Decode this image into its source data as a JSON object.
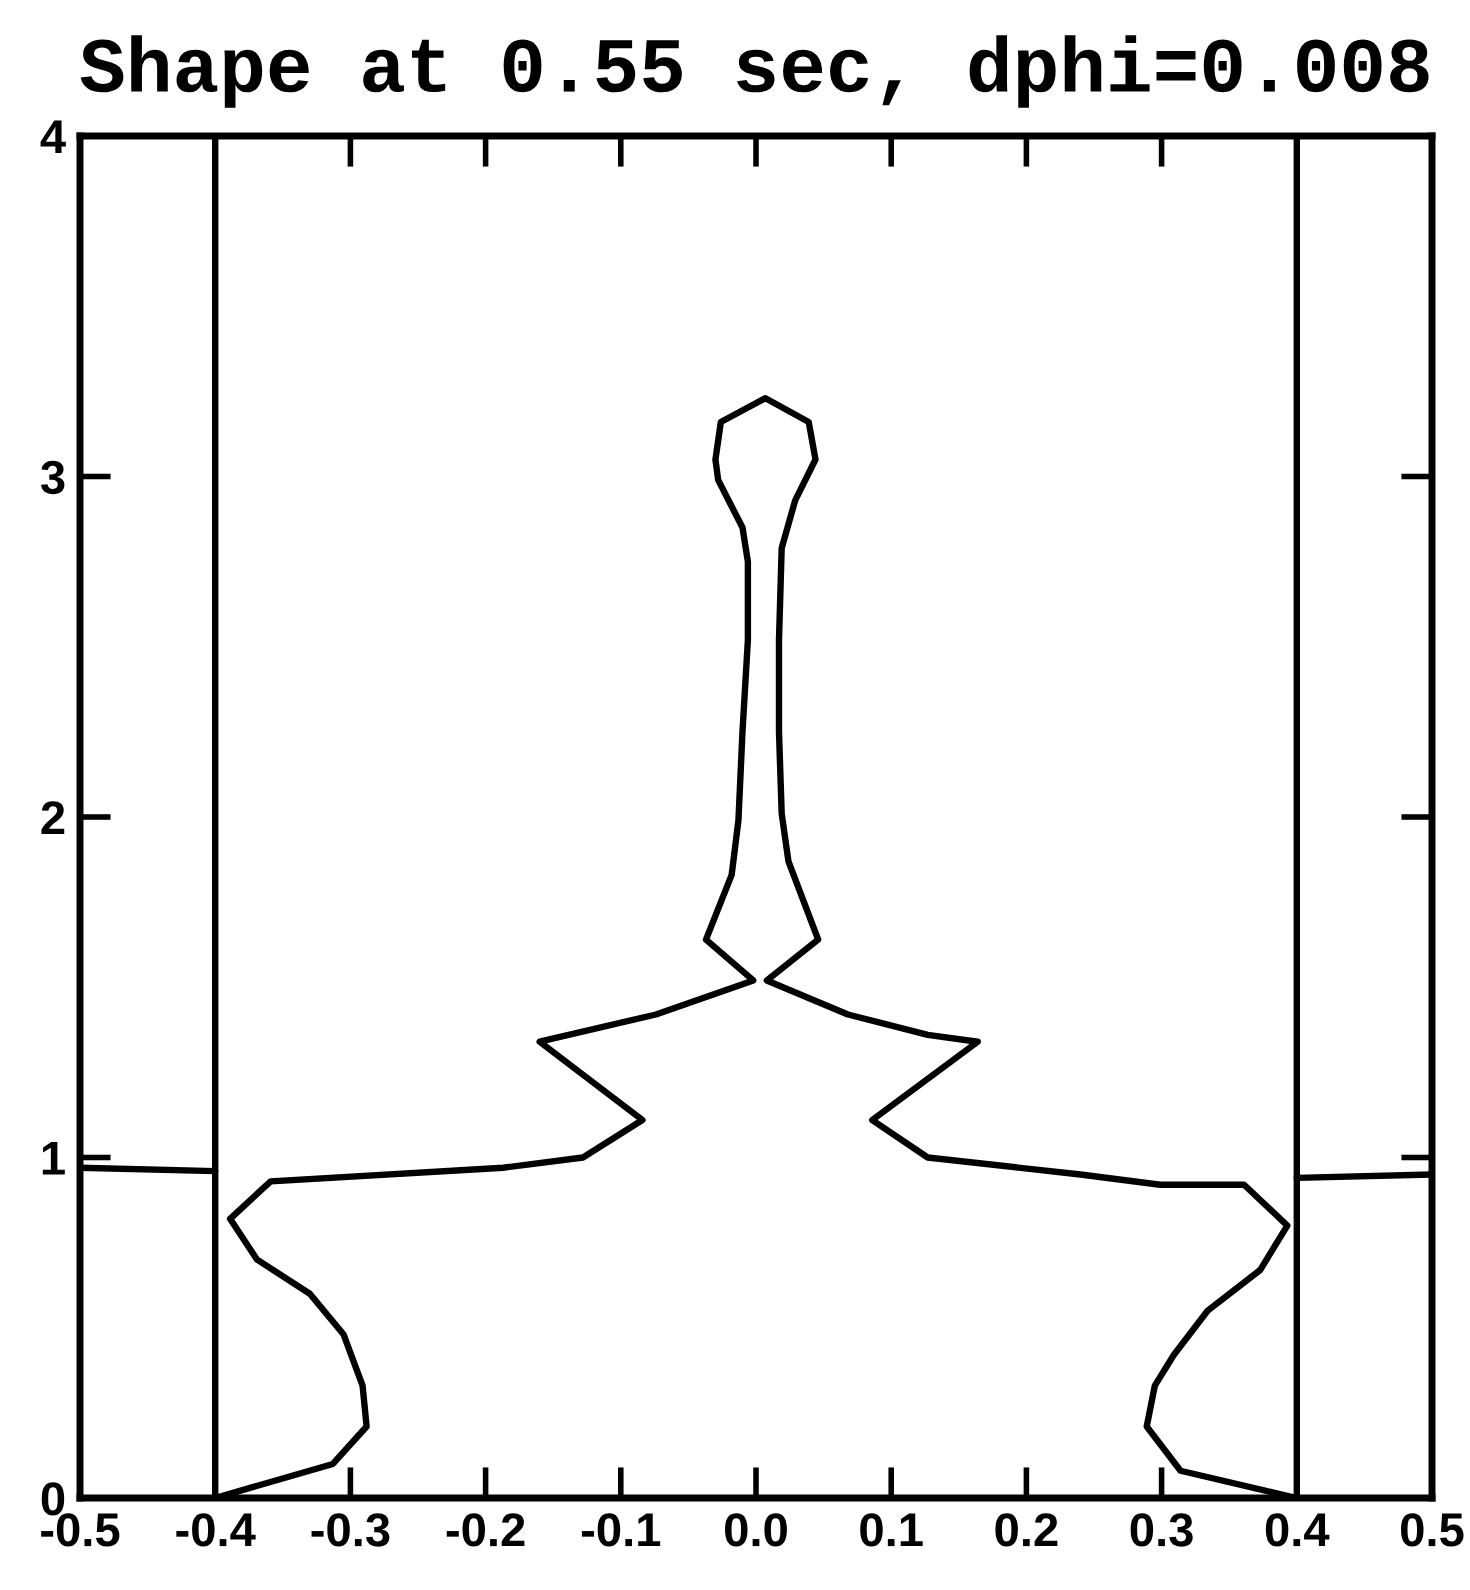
{
  "chart_data": {
    "type": "line",
    "title": "Shape at 0.55 sec, dphi=0.008",
    "xlim": [
      -0.5,
      0.5
    ],
    "xticks": [
      -0.5,
      -0.4,
      -0.3,
      -0.2,
      -0.1,
      {
        "value": 0,
        "label": "0.0"
      },
      0.1,
      0.2,
      0.3,
      0.4,
      0.5
    ],
    "ylim": [
      0,
      4
    ],
    "yticks": [
      0,
      1,
      2,
      3,
      4
    ],
    "line_style": "solid",
    "ref_lines": [
      {
        "axis": "x",
        "value": -0.4,
        "color": "#000000"
      },
      {
        "axis": "x",
        "value": 0.4,
        "color": "#000000"
      }
    ],
    "series": [
      {
        "color": "#000000",
        "x": [
          -0.4,
          -0.313,
          -0.288,
          -0.291,
          -0.305,
          -0.33,
          -0.369,
          -0.389,
          -0.359,
          -0.187,
          -0.128,
          -0.084,
          -0.16,
          -0.074,
          -0.002,
          -0.037,
          -0.018,
          -0.013,
          -0.01,
          -0.006,
          -0.006,
          -0.01,
          -0.028,
          -0.03,
          -0.026,
          0.007,
          0.039,
          0.044,
          0.029,
          0.019,
          0.017,
          0.017,
          0.019,
          0.024,
          0.046,
          0.008,
          0.068,
          0.127,
          0.164,
          0.086,
          0.127,
          0.24,
          0.299,
          0.361,
          0.393,
          0.373,
          0.334,
          0.309,
          0.295,
          0.289,
          0.314,
          0.4
        ],
        "values": [
          0,
          0.1,
          0.21,
          0.33,
          0.48,
          0.6,
          0.7,
          0.82,
          0.93,
          0.97,
          1.0,
          1.11,
          1.34,
          1.42,
          1.52,
          1.64,
          1.83,
          1.99,
          2.25,
          2.52,
          2.75,
          2.85,
          2.99,
          3.05,
          3.16,
          3.23,
          3.16,
          3.05,
          2.93,
          2.79,
          2.52,
          2.25,
          2.01,
          1.87,
          1.64,
          1.52,
          1.42,
          1.36,
          1.34,
          1.11,
          1.0,
          0.95,
          0.92,
          0.92,
          0.8,
          0.67,
          0.55,
          0.42,
          0.33,
          0.21,
          0.08,
          0
        ]
      },
      {
        "color": "#000000",
        "x": [
          -0.5,
          -0.4
        ],
        "values": [
          0.97,
          0.96
        ]
      },
      {
        "color": "#000000",
        "x": [
          0.4,
          0.5
        ],
        "values": [
          0.94,
          0.95
        ]
      }
    ]
  }
}
